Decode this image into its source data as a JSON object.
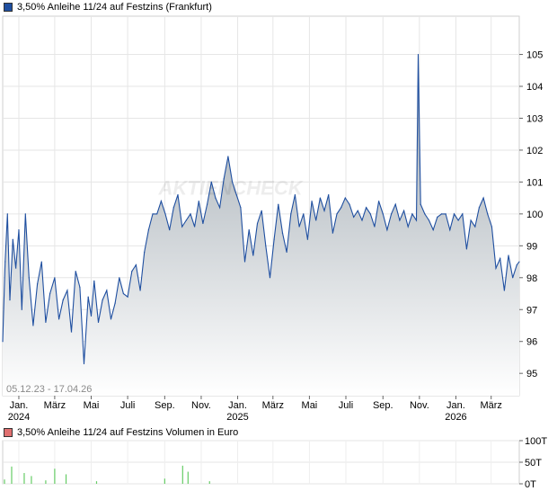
{
  "chart_data": [
    {
      "type": "area",
      "legend": "3,50% Anleihe 11/24 auf Festzins (Frankfurt)",
      "legend_color": "#1f4fa0",
      "fill_top_color": "#9aa4ac",
      "fill_bottom_color": "#ffffff",
      "watermark": "AKTIENCHECK",
      "date_range": "05.12.23 - 17.04.26",
      "ylim": [
        94.3,
        106.2
      ],
      "yticks": [
        95,
        96,
        97,
        98,
        99,
        100,
        101,
        102,
        103,
        104,
        105
      ],
      "xlim": [
        "2023-12-05",
        "2026-04-17"
      ],
      "xticks": [
        {
          "date": "2024-01-01",
          "label": "Jan.",
          "year": "2024"
        },
        {
          "date": "2024-03-01",
          "label": "März",
          "year": ""
        },
        {
          "date": "2024-05-01",
          "label": "Mai",
          "year": ""
        },
        {
          "date": "2024-07-01",
          "label": "Juli",
          "year": ""
        },
        {
          "date": "2024-09-01",
          "label": "Sep.",
          "year": ""
        },
        {
          "date": "2024-11-01",
          "label": "Nov.",
          "year": ""
        },
        {
          "date": "2025-01-01",
          "label": "Jan.",
          "year": "2025"
        },
        {
          "date": "2025-03-01",
          "label": "März",
          "year": ""
        },
        {
          "date": "2025-05-01",
          "label": "Mai",
          "year": ""
        },
        {
          "date": "2025-07-01",
          "label": "Juli",
          "year": ""
        },
        {
          "date": "2025-09-01",
          "label": "Sep.",
          "year": ""
        },
        {
          "date": "2025-11-01",
          "label": "Nov.",
          "year": ""
        },
        {
          "date": "2026-01-01",
          "label": "Jan.",
          "year": "2026"
        },
        {
          "date": "2026-03-01",
          "label": "März",
          "year": ""
        }
      ],
      "grid": true,
      "series": [
        {
          "name": "3,50% Anleihe 11/24 auf Festzins (Frankfurt)",
          "color": "#1f4fa0",
          "x": [
            "2023-12-05",
            "2023-12-09",
            "2023-12-13",
            "2023-12-17",
            "2023-12-22",
            "2023-12-27",
            "2024-01-01",
            "2024-01-06",
            "2024-01-12",
            "2024-01-18",
            "2024-01-25",
            "2024-02-01",
            "2024-02-08",
            "2024-02-15",
            "2024-02-22",
            "2024-03-01",
            "2024-03-08",
            "2024-03-15",
            "2024-03-22",
            "2024-03-29",
            "2024-04-05",
            "2024-04-12",
            "2024-04-19",
            "2024-04-26",
            "2024-05-01",
            "2024-05-06",
            "2024-05-13",
            "2024-05-20",
            "2024-05-27",
            "2024-06-03",
            "2024-06-10",
            "2024-06-17",
            "2024-06-24",
            "2024-07-01",
            "2024-07-08",
            "2024-07-15",
            "2024-07-22",
            "2024-07-29",
            "2024-08-05",
            "2024-08-12",
            "2024-08-19",
            "2024-08-26",
            "2024-09-02",
            "2024-09-09",
            "2024-09-16",
            "2024-09-23",
            "2024-09-30",
            "2024-10-07",
            "2024-10-14",
            "2024-10-21",
            "2024-10-28",
            "2024-11-04",
            "2024-11-11",
            "2024-11-18",
            "2024-11-25",
            "2024-12-02",
            "2024-12-09",
            "2024-12-16",
            "2024-12-23",
            "2024-12-30",
            "2025-01-06",
            "2025-01-13",
            "2025-01-20",
            "2025-01-27",
            "2025-02-03",
            "2025-02-10",
            "2025-02-17",
            "2025-02-24",
            "2025-03-03",
            "2025-03-10",
            "2025-03-17",
            "2025-03-24",
            "2025-03-31",
            "2025-04-07",
            "2025-04-14",
            "2025-04-21",
            "2025-04-28",
            "2025-05-05",
            "2025-05-12",
            "2025-05-19",
            "2025-05-26",
            "2025-06-02",
            "2025-06-09",
            "2025-06-16",
            "2025-06-23",
            "2025-06-30",
            "2025-07-07",
            "2025-07-14",
            "2025-07-21",
            "2025-07-28",
            "2025-08-04",
            "2025-08-11",
            "2025-08-18",
            "2025-08-25",
            "2025-09-01",
            "2025-09-08",
            "2025-09-15",
            "2025-09-22",
            "2025-09-29",
            "2025-10-06",
            "2025-10-13",
            "2025-10-20",
            "2025-10-27",
            "2025-10-30",
            "2025-11-03",
            "2025-11-10",
            "2025-11-17",
            "2025-11-24",
            "2025-12-01",
            "2025-12-08",
            "2025-12-15",
            "2025-12-22",
            "2025-12-29",
            "2026-01-05",
            "2026-01-12",
            "2026-01-19",
            "2026-01-26",
            "2026-02-02",
            "2026-02-09",
            "2026-02-16",
            "2026-02-23",
            "2026-03-02",
            "2026-03-09",
            "2026-03-16",
            "2026-03-23",
            "2026-03-30",
            "2026-04-06",
            "2026-04-13",
            "2026-04-17"
          ],
          "y": [
            96.0,
            98.5,
            100.0,
            97.3,
            99.2,
            98.3,
            99.5,
            97.0,
            100.0,
            98.0,
            96.5,
            97.8,
            98.5,
            96.6,
            97.5,
            98.0,
            96.7,
            97.3,
            97.6,
            96.3,
            98.2,
            97.7,
            95.3,
            97.4,
            96.8,
            97.9,
            96.6,
            97.3,
            97.6,
            96.7,
            97.2,
            98.0,
            97.5,
            97.4,
            98.2,
            98.4,
            97.6,
            98.8,
            99.5,
            100.0,
            100.0,
            100.4,
            100.0,
            99.5,
            100.2,
            100.6,
            99.6,
            99.8,
            100.0,
            99.6,
            100.4,
            99.7,
            100.3,
            101.0,
            100.5,
            100.2,
            101.1,
            101.8,
            101.0,
            100.6,
            100.2,
            98.5,
            99.5,
            98.7,
            99.7,
            100.1,
            99.0,
            98.0,
            99.2,
            100.3,
            99.4,
            98.8,
            100.0,
            100.6,
            99.6,
            100.0,
            99.2,
            100.4,
            99.8,
            100.5,
            100.1,
            100.6,
            99.4,
            100.0,
            100.2,
            100.5,
            100.3,
            99.9,
            100.1,
            99.8,
            100.2,
            100.0,
            99.6,
            100.4,
            100.0,
            99.5,
            100.0,
            100.3,
            99.8,
            100.1,
            99.6,
            100.0,
            99.8,
            105.0,
            100.3,
            100.0,
            99.8,
            99.5,
            99.9,
            100.0,
            100.0,
            99.5,
            100.0,
            99.8,
            100.0,
            98.9,
            99.8,
            99.6,
            100.2,
            100.5,
            100.0,
            99.6,
            98.3,
            98.6,
            97.6,
            98.7,
            98.0,
            98.4,
            98.5
          ]
        }
      ]
    },
    {
      "type": "bar",
      "legend": "3,50% Anleihe 11/24 auf Festzins Volumen in Euro",
      "legend_color": "#e07070",
      "bar_color": "#66cc66",
      "ylim": [
        0,
        100
      ],
      "yticks": [
        0,
        50,
        100
      ],
      "ytick_labels": [
        "0T",
        "50T",
        "100T"
      ],
      "unit": "T Euro",
      "grid": true,
      "x": [
        "2023-12-08",
        "2023-12-20",
        "2024-01-10",
        "2024-01-22",
        "2024-02-15",
        "2024-03-01",
        "2024-03-20",
        "2024-05-10",
        "2024-09-01",
        "2024-10-01",
        "2024-10-10",
        "2024-11-15"
      ],
      "values": [
        10,
        40,
        25,
        18,
        8,
        35,
        22,
        6,
        12,
        42,
        28,
        6
      ]
    }
  ]
}
